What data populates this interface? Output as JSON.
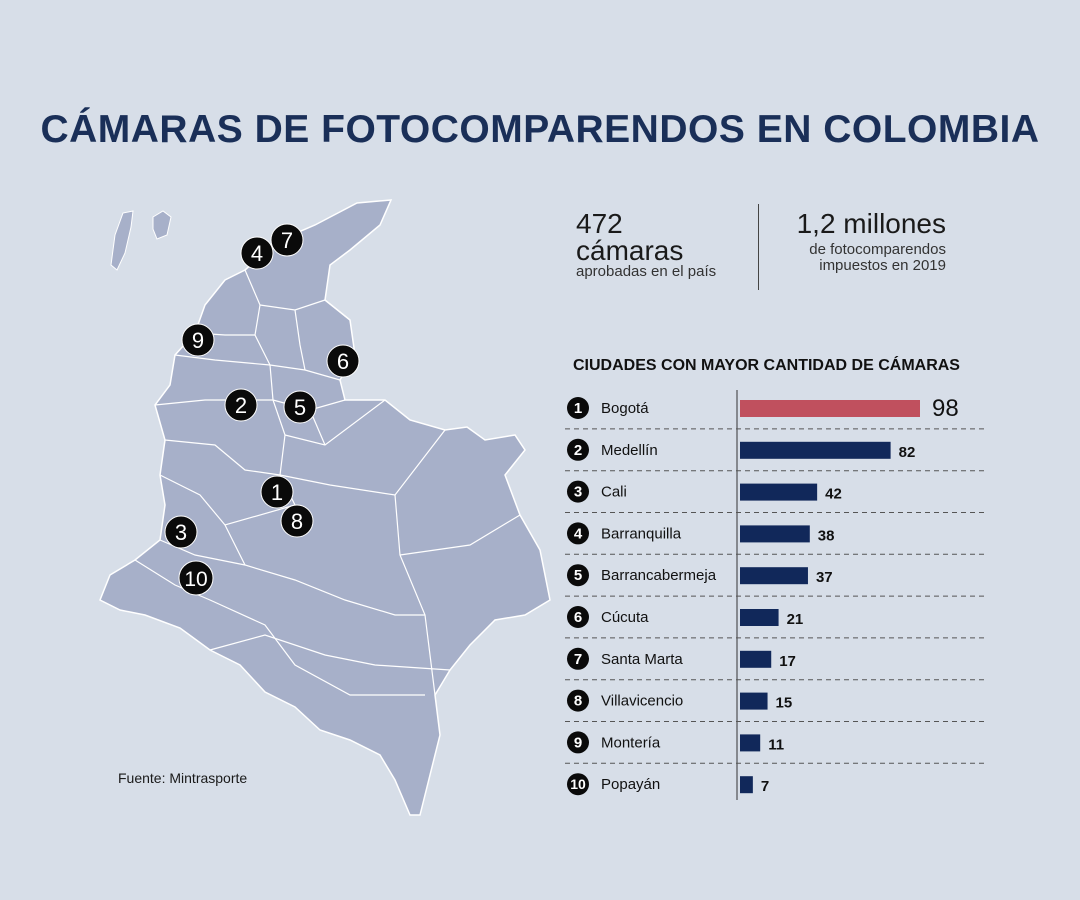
{
  "header": {
    "title": "CÁMARAS DE FOTOCOMPARENDOS EN COLOMBIA"
  },
  "stats": {
    "cameras": {
      "value": "472",
      "unit": "cámaras",
      "caption": "aprobadas en el país"
    },
    "tickets": {
      "value": "1,2 millones",
      "caption_line1": "de fotocomparendos",
      "caption_line2": "impuestos en 2019"
    }
  },
  "source": "Fuente: Mintrasporte",
  "colors": {
    "title": "#1a2f58",
    "bar": "#11285a",
    "highlight": "#c0505e",
    "map_fill": "#a7b0c9",
    "background": "#d7dee8"
  },
  "map_markers": [
    "1",
    "2",
    "3",
    "4",
    "5",
    "6",
    "7",
    "8",
    "9",
    "10"
  ],
  "chart_data": {
    "type": "bar",
    "orientation": "horizontal",
    "title": "CIUDADES CON MAYOR CANTIDAD DE CÁMARAS",
    "ranks": [
      "1",
      "2",
      "3",
      "4",
      "5",
      "6",
      "7",
      "8",
      "9",
      "10"
    ],
    "categories": [
      "Bogotá",
      "Medellín",
      "Cali",
      "Barranquilla",
      "Barrancabermeja",
      "Cúcuta",
      "Santa Marta",
      "Villavicencio",
      "Montería",
      "Popayán"
    ],
    "values": [
      98,
      82,
      42,
      38,
      37,
      21,
      17,
      15,
      11,
      7
    ],
    "highlight_index": 0,
    "xlim": [
      0,
      98
    ]
  }
}
